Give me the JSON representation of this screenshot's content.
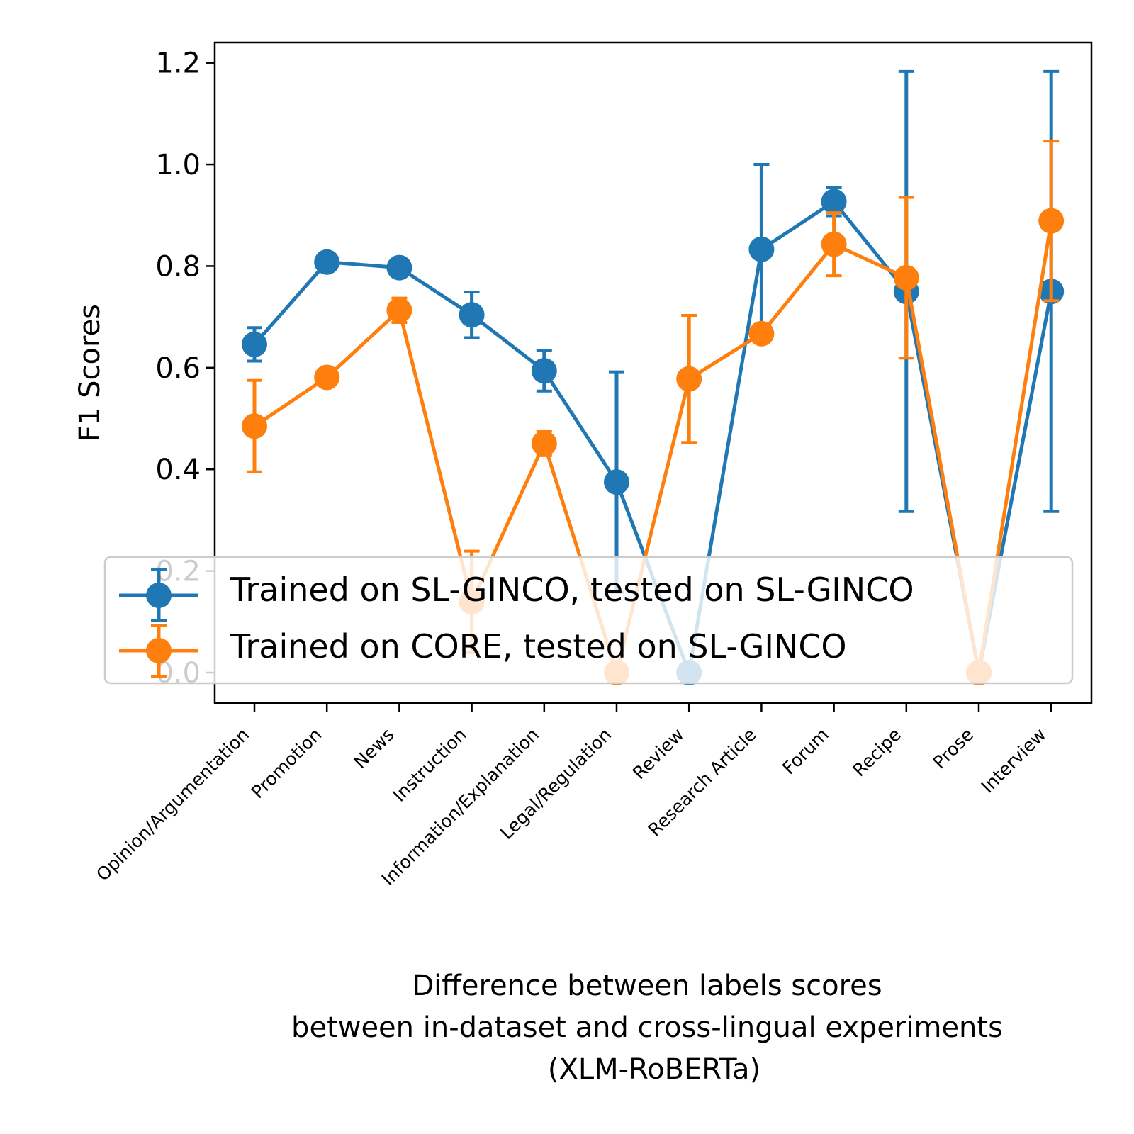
{
  "chart_data": {
    "type": "line",
    "title": "",
    "ylabel": "F1 Scores",
    "xlabel_lines": [
      "Difference between labels scores",
      "between in-dataset and cross-lingual experiments",
      "(XLM-RoBERTa)"
    ],
    "ylim": [
      -0.06,
      1.24
    ],
    "yticks": [
      0.0,
      0.2,
      0.4,
      0.6,
      0.8,
      1.0,
      1.2
    ],
    "ytick_labels": [
      "0.0",
      "0.2",
      "0.4",
      "0.6",
      "0.8",
      "1.0",
      "1.2"
    ],
    "categories": [
      "Opinion/Argumentation",
      "Promotion",
      "News",
      "Instruction",
      "Information/Explanation",
      "Legal/Regulation",
      "Review",
      "Research Article",
      "Forum",
      "Recipe",
      "Prose",
      "Interview"
    ],
    "grid": false,
    "legend_position": "lower center",
    "series": [
      {
        "name": "Trained on SL-GINCO, tested on SL-GINCO",
        "color": "#1f77b4",
        "values": [
          0.646,
          0.808,
          0.797,
          0.704,
          0.594,
          0.375,
          0.0,
          0.833,
          0.927,
          0.75,
          0.0,
          0.75
        ],
        "errors": [
          0.033,
          0.01,
          0.008,
          0.045,
          0.04,
          0.217,
          0.0,
          0.167,
          0.028,
          0.433,
          0.0,
          0.433
        ]
      },
      {
        "name": "Trained on CORE, tested on SL-GINCO",
        "color": "#ff7f0e",
        "values": [
          0.485,
          0.581,
          0.713,
          0.139,
          0.451,
          0.0,
          0.578,
          0.667,
          0.843,
          0.777,
          0.0,
          0.889
        ],
        "errors": [
          0.09,
          0.005,
          0.024,
          0.1,
          0.024,
          0.0,
          0.125,
          0.005,
          0.062,
          0.158,
          0.0,
          0.157
        ]
      }
    ]
  }
}
